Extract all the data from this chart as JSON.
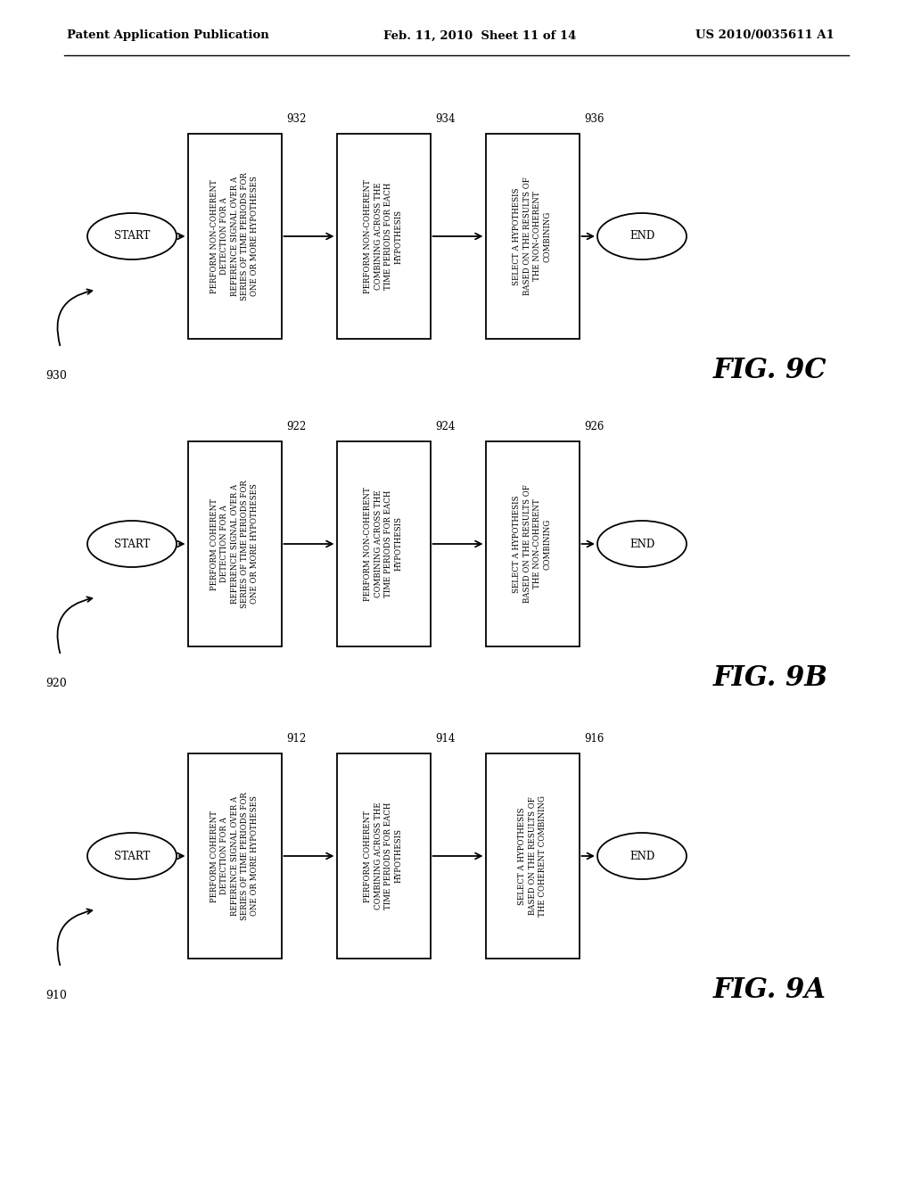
{
  "background_color": "#ffffff",
  "header_left": "Patent Application Publication",
  "header_center": "Feb. 11, 2010  Sheet 11 of 14",
  "header_right": "US 2010/0035611 A1",
  "diagrams": [
    {
      "id": "9A",
      "label": "FIG. 9A",
      "group_label": "910",
      "start_label": "START",
      "end_label": "END",
      "box1_label": "PERFORM COHERENT\nDETECTION FOR A\nREFERENCE SIGNAL OVER A\nSERIES OF TIME PERIODS FOR\nONE OR MORE HYPOTHESES",
      "box2_label": "PERFORM COHERENT\nCOMBINING ACROSS THE\nTIME PERIODS FOR EACH\nHYPOTHESIS",
      "box3_label": "SELECT A HYPOTHESIS\nBASED ON THE RESULTS OF\nTHE COHERENT COMBINING",
      "box1_num": "912",
      "box2_num": "914",
      "box3_num": "916"
    },
    {
      "id": "9B",
      "label": "FIG. 9B",
      "group_label": "920",
      "start_label": "START",
      "end_label": "END",
      "box1_label": "PERFORM COHERENT\nDETECTION FOR A\nREFERENCE SIGNAL OVER A\nSERIES OF TIME PERIODS FOR\nONE OR MORE HYPOTHESES",
      "box2_label": "PERFORM NON-COHERENT\nCOMBINING ACROSS THE\nTIME PERIODS FOR EACH\nHYPOTHESIS",
      "box3_label": "SELECT A HYPOTHESIS\nBASED ON THE RESULTS OF\nTHE NON-COHERENT\nCOMBINING",
      "box1_num": "922",
      "box2_num": "924",
      "box3_num": "926"
    },
    {
      "id": "9C",
      "label": "FIG. 9C",
      "group_label": "930",
      "start_label": "START",
      "end_label": "END",
      "box1_label": "PERFORM NON-COHERENT\nDETECTION FOR A\nREFERENCE SIGNAL OVER A\nSERIES OF TIME PERIODS FOR\nONE OR MORE HYPOTHESES",
      "box2_label": "PERFORM NON-COHERENT\nCOMBINING ACROSS THE\nTIME PERIODS FOR EACH\nHYPOTHESIS",
      "box3_label": "SELECT A HYPOTHESIS\nBASED ON THE RESULTS OF\nTHE NON-COHERENT\nCOMBINING",
      "box1_num": "932",
      "box2_num": "934",
      "box3_num": "936"
    }
  ]
}
